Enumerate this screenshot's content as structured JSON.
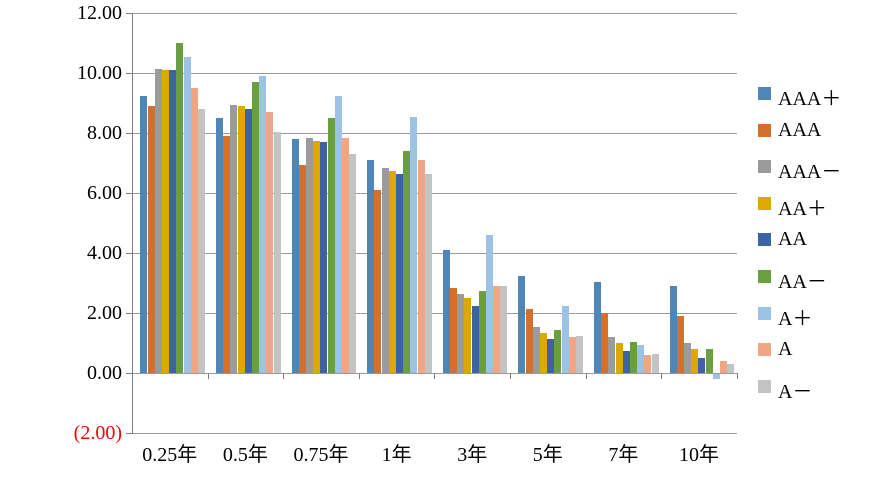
{
  "chart_data": {
    "type": "bar",
    "title": "",
    "xlabel": "",
    "ylabel": "",
    "categories": [
      "0.25年",
      "0.5年",
      "0.75年",
      "1年",
      "3年",
      "5年",
      "7年",
      "10年"
    ],
    "series": [
      {
        "name": "AAA＋",
        "color": "#4e86b8",
        "values": [
          9.25,
          8.5,
          7.8,
          7.1,
          4.1,
          3.25,
          3.05,
          2.9
        ]
      },
      {
        "name": "AAA",
        "color": "#d2712f",
        "values": [
          8.9,
          7.9,
          6.95,
          6.1,
          2.85,
          2.15,
          2.0,
          1.9
        ]
      },
      {
        "name": "AAA－",
        "color": "#9b9b9b",
        "values": [
          10.15,
          8.95,
          7.85,
          6.85,
          2.65,
          1.55,
          1.2,
          1.0
        ]
      },
      {
        "name": "AA＋",
        "color": "#dda900",
        "values": [
          10.1,
          8.9,
          7.75,
          6.75,
          2.5,
          1.35,
          1.0,
          0.8
        ]
      },
      {
        "name": "AA",
        "color": "#3b63a5",
        "values": [
          10.1,
          8.8,
          7.7,
          6.65,
          2.25,
          1.15,
          0.75,
          0.5
        ]
      },
      {
        "name": "AA－",
        "color": "#699e41",
        "values": [
          11.0,
          9.7,
          8.5,
          7.4,
          2.75,
          1.45,
          1.05,
          0.8
        ]
      },
      {
        "name": "A＋",
        "color": "#9cc2e5",
        "values": [
          10.55,
          9.9,
          9.25,
          8.55,
          4.6,
          2.25,
          0.95,
          -0.15
        ]
      },
      {
        "name": "A",
        "color": "#f2a583",
        "values": [
          9.5,
          8.7,
          7.85,
          7.1,
          2.9,
          1.2,
          0.6,
          0.4
        ]
      },
      {
        "name": "A－",
        "color": "#c3c3c3",
        "values": [
          8.8,
          8.05,
          7.3,
          6.65,
          2.9,
          1.25,
          0.65,
          0.3
        ]
      }
    ],
    "ylim": [
      -2,
      12
    ],
    "ytick_interval": 2,
    "yticks": [
      {
        "value": 12,
        "label": "12.00",
        "color": "#000000"
      },
      {
        "value": 10,
        "label": "10.00",
        "color": "#000000"
      },
      {
        "value": 8,
        "label": "8.00",
        "color": "#000000"
      },
      {
        "value": 6,
        "label": "6.00",
        "color": "#000000"
      },
      {
        "value": 4,
        "label": "4.00",
        "color": "#000000"
      },
      {
        "value": 2,
        "label": "2.00",
        "color": "#000000"
      },
      {
        "value": 0,
        "label": "0.00",
        "color": "#000000"
      },
      {
        "value": -2,
        "label": "(2.00)",
        "color": "#ff0000"
      }
    ],
    "grid": true,
    "legend_position": "right",
    "gridline_color": "#9b9b9b",
    "axis_color": "#7f7f7f",
    "background_color": "#ffffff"
  }
}
